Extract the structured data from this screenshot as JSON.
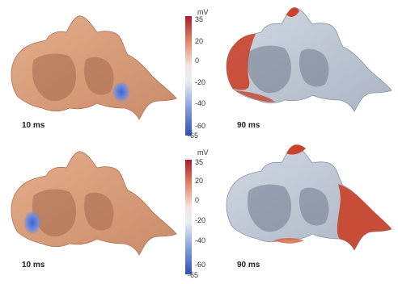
{
  "figure": {
    "panels": [
      {
        "id": "top-left",
        "time_label": "10 ms",
        "activation": "small blue patch near right base"
      },
      {
        "id": "top-right",
        "time_label": "90 ms",
        "activation": "red rim on left edge and appendage tip"
      },
      {
        "id": "bottom-left",
        "time_label": "10 ms",
        "activation": "small blue patch on left side"
      },
      {
        "id": "bottom-right",
        "time_label": "90 ms",
        "activation": "red region on right lobe and tip"
      }
    ],
    "colorbars": [
      {
        "unit": "mV",
        "ticks": [
          "35",
          "20",
          "0",
          "-20",
          "-40",
          "-60",
          "-65"
        ]
      },
      {
        "unit": "mV",
        "ticks": [
          "35",
          "20",
          "0",
          "-20",
          "-40",
          "-60",
          "-65"
        ]
      }
    ],
    "colors": {
      "tissue_rest": "#d9a07c",
      "tissue_rest_shadow": "#a66b4e",
      "depolarized_grey": "#c3ccd7",
      "grey_shadow": "#7f8a99",
      "peak_red": "#c0392b",
      "min_blue": "#3e63c8"
    }
  }
}
